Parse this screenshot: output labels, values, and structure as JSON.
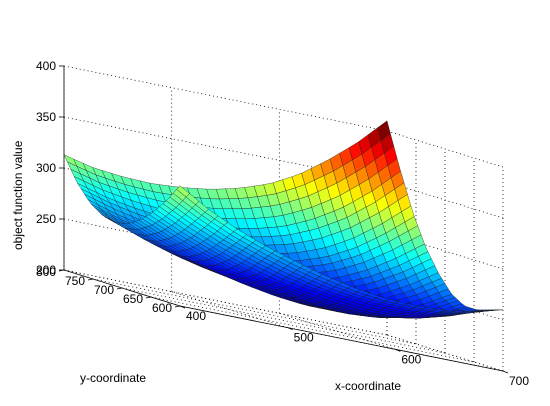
{
  "chart_data": {
    "type": "surface",
    "title": "",
    "xlabel": "x-coordinate",
    "ylabel": "y-coordinate",
    "zlabel": "object function value",
    "xlim": [
      400,
      700
    ],
    "ylim": [
      600,
      800
    ],
    "zlim": [
      200,
      400
    ],
    "xticks": [
      "400",
      "500",
      "600",
      "700"
    ],
    "yticks": [
      "600",
      "650",
      "700",
      "750",
      "800"
    ],
    "zticks": [
      "200",
      "250",
      "300",
      "350",
      "400"
    ],
    "grid": true,
    "colormap": [
      "#00008f",
      "#0000ff",
      "#0080ff",
      "#00ffff",
      "#80ff80",
      "#ffff00",
      "#ff8000",
      "#ff0000",
      "#800000"
    ],
    "surface": {
      "x_range": [
        400,
        700
      ],
      "y_range": [
        600,
        800
      ],
      "z_values": [
        [
          318,
          300,
          286,
          275,
          266,
          258,
          252,
          248,
          247,
          248,
          252,
          260
        ],
        [
          300,
          285,
          272,
          262,
          253,
          246,
          241,
          238,
          237,
          240,
          246,
          256
        ],
        [
          285,
          271,
          259,
          249,
          241,
          235,
          230,
          227,
          228,
          232,
          240,
          252
        ],
        [
          273,
          260,
          249,
          240,
          233,
          227,
          223,
          221,
          223,
          229,
          238,
          252
        ],
        [
          265,
          253,
          243,
          235,
          228,
          223,
          220,
          220,
          224,
          232,
          244,
          260
        ],
        [
          262,
          251,
          242,
          235,
          230,
          226,
          225,
          227,
          233,
          243,
          258,
          276
        ],
        [
          265,
          255,
          247,
          241,
          237,
          235,
          236,
          240,
          248,
          261,
          278,
          298
        ],
        [
          274,
          265,
          258,
          253,
          251,
          251,
          254,
          260,
          270,
          285,
          305,
          328
        ],
        [
          290,
          282,
          277,
          274,
          274,
          276,
          281,
          289,
          302,
          319,
          341,
          367
        ],
        [
          313,
          306,
          303,
          302,
          304,
          308,
          315,
          325,
          340,
          360,
          383,
          410
        ]
      ]
    }
  }
}
